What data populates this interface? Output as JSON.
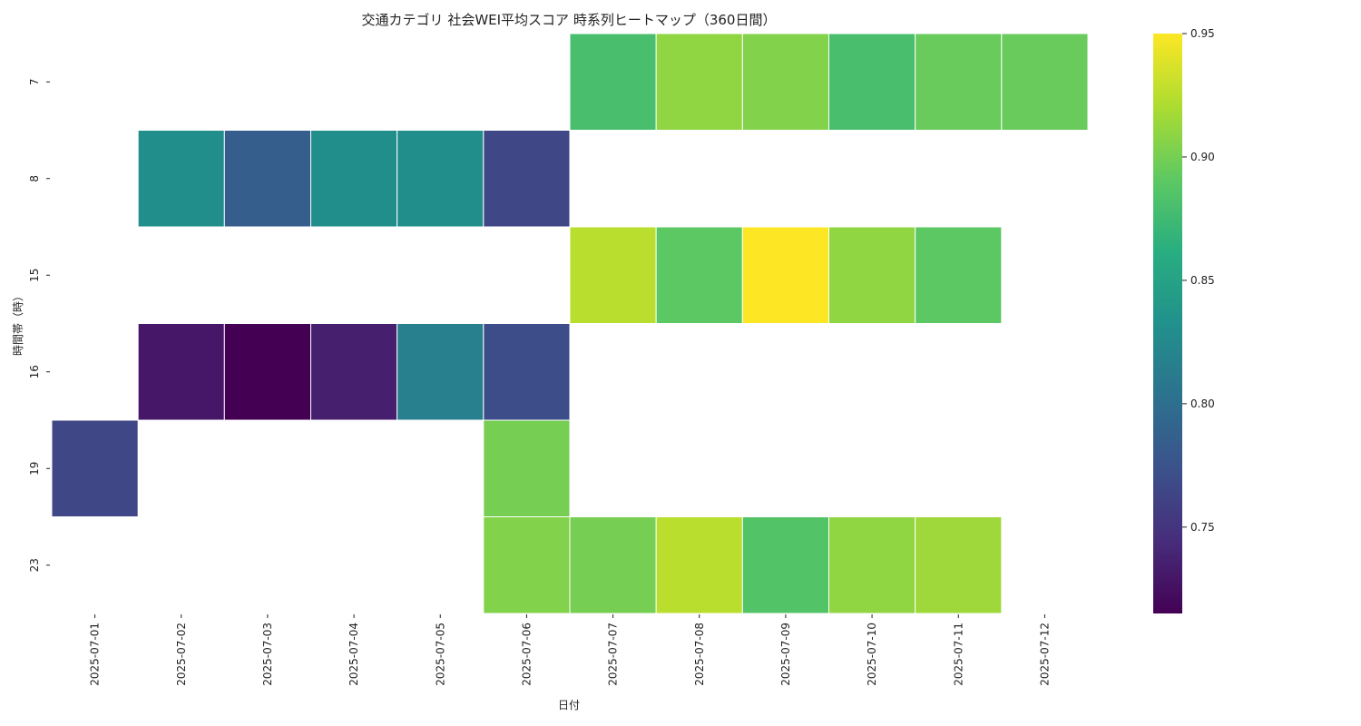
{
  "chart_data": {
    "type": "heatmap",
    "title": "交通カテゴリ 社会WEI平均スコア 時系列ヒートマップ（360日間）",
    "xlabel": "日付",
    "ylabel": "時間帯（時）",
    "x": [
      "2025-07-01",
      "2025-07-02",
      "2025-07-03",
      "2025-07-04",
      "2025-07-05",
      "2025-07-06",
      "2025-07-07",
      "2025-07-08",
      "2025-07-09",
      "2025-07-10",
      "2025-07-11",
      "2025-07-12"
    ],
    "y": [
      "7",
      "8",
      "15",
      "16",
      "19",
      "23"
    ],
    "values": [
      [
        null,
        null,
        null,
        null,
        null,
        null,
        0.88,
        0.91,
        0.905,
        0.88,
        0.895,
        0.895
      ],
      [
        null,
        0.83,
        0.785,
        0.83,
        0.83,
        0.765,
        null,
        null,
        null,
        null,
        null,
        null
      ],
      [
        null,
        null,
        null,
        null,
        null,
        null,
        0.925,
        0.89,
        0.95,
        0.91,
        0.89,
        null
      ],
      [
        null,
        0.73,
        0.715,
        0.735,
        0.815,
        0.77,
        null,
        null,
        null,
        null,
        null,
        null
      ],
      [
        0.765,
        null,
        null,
        null,
        null,
        0.9,
        null,
        null,
        null,
        null,
        null,
        null
      ],
      [
        null,
        null,
        null,
        null,
        null,
        0.905,
        0.9,
        0.925,
        0.885,
        0.91,
        0.915,
        null
      ]
    ],
    "vmin": 0.715,
    "vmax": 0.95,
    "colormap": "viridis",
    "colorbar_ticks": [
      "0.75",
      "0.80",
      "0.85",
      "0.90",
      "0.95"
    ]
  }
}
